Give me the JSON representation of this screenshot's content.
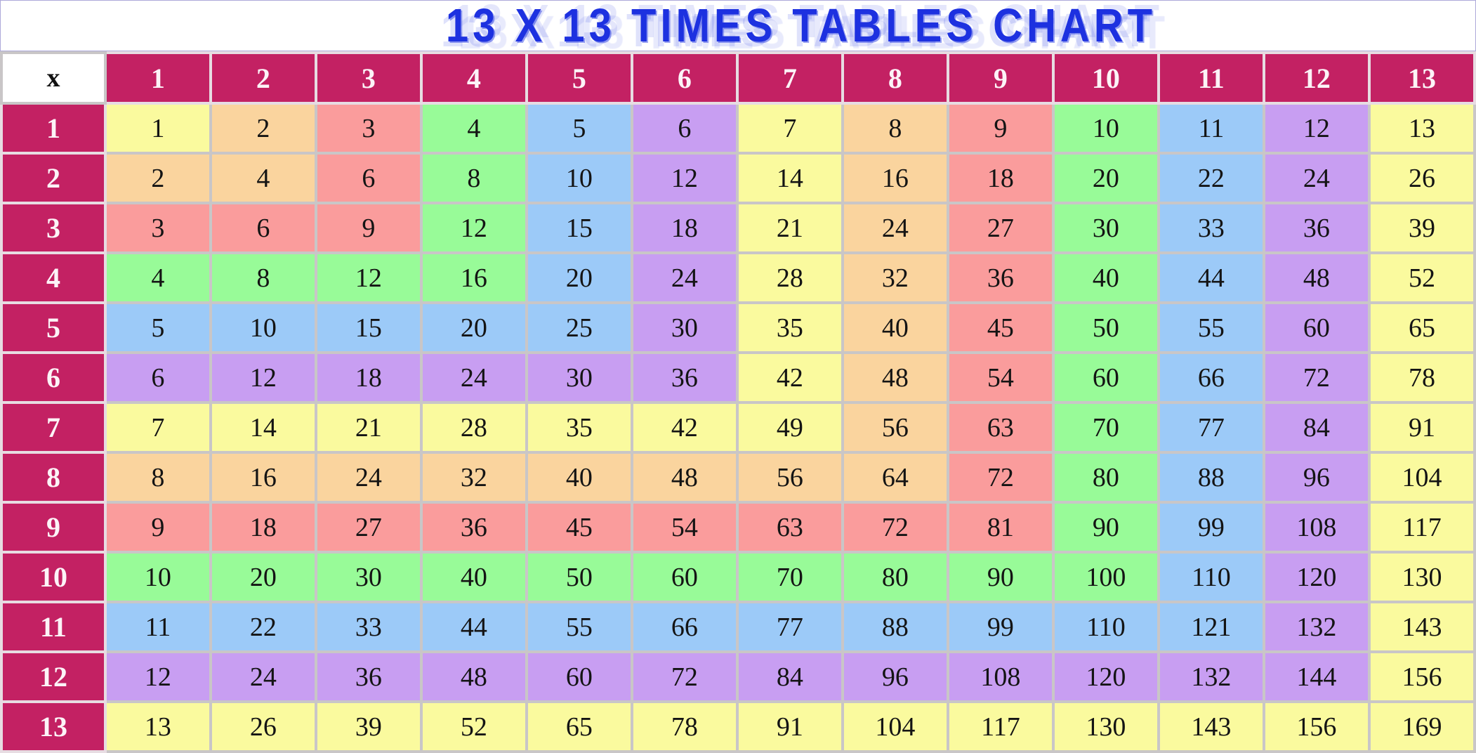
{
  "title": "13 X 13 TIMES TABLES CHART",
  "chart_data": {
    "type": "table",
    "title": "13 X 13 TIMES TABLES CHART",
    "corner_label": "x",
    "column_headers": [
      "1",
      "2",
      "3",
      "4",
      "5",
      "6",
      "7",
      "8",
      "9",
      "10",
      "11",
      "12",
      "13"
    ],
    "row_headers": [
      "1",
      "2",
      "3",
      "4",
      "5",
      "6",
      "7",
      "8",
      "9",
      "10",
      "11",
      "12",
      "13"
    ],
    "values": [
      [
        1,
        2,
        3,
        4,
        5,
        6,
        7,
        8,
        9,
        10,
        11,
        12,
        13
      ],
      [
        2,
        4,
        6,
        8,
        10,
        12,
        14,
        16,
        18,
        20,
        22,
        24,
        26
      ],
      [
        3,
        6,
        9,
        12,
        15,
        18,
        21,
        24,
        27,
        30,
        33,
        36,
        39
      ],
      [
        4,
        8,
        12,
        16,
        20,
        24,
        28,
        32,
        36,
        40,
        44,
        48,
        52
      ],
      [
        5,
        10,
        15,
        20,
        25,
        30,
        35,
        40,
        45,
        50,
        55,
        60,
        65
      ],
      [
        6,
        12,
        18,
        24,
        30,
        36,
        42,
        48,
        54,
        60,
        66,
        72,
        78
      ],
      [
        7,
        14,
        21,
        28,
        35,
        42,
        49,
        56,
        63,
        70,
        77,
        84,
        91
      ],
      [
        8,
        16,
        24,
        32,
        40,
        48,
        56,
        64,
        72,
        80,
        88,
        96,
        104
      ],
      [
        9,
        18,
        27,
        36,
        45,
        54,
        63,
        72,
        81,
        90,
        99,
        108,
        117
      ],
      [
        10,
        20,
        30,
        40,
        50,
        60,
        70,
        80,
        90,
        100,
        110,
        120,
        130
      ],
      [
        11,
        22,
        33,
        44,
        55,
        66,
        77,
        88,
        99,
        110,
        121,
        132,
        143
      ],
      [
        12,
        24,
        36,
        48,
        60,
        72,
        84,
        96,
        108,
        120,
        132,
        144,
        156
      ],
      [
        13,
        26,
        39,
        52,
        65,
        78,
        91,
        104,
        117,
        130,
        143,
        156,
        169
      ]
    ],
    "color_rule": "cell background = palette[(max(row,col)-1) mod 6]",
    "legend_position": "none",
    "grid": true
  },
  "colors": {
    "header_bg": "#C32163",
    "header_text": "#FCF3F7",
    "title": "#1D31E0",
    "grid_line": "#C9C6C7",
    "header_grid_line": "#E7DCE2",
    "title_band_border": "#ADA9D9",
    "cell_text": "#141414",
    "palette": [
      "#FAFA9E",
      "#FAD49E",
      "#FA9C9C",
      "#98FB98",
      "#9CCAF8",
      "#C89EF2"
    ]
  }
}
